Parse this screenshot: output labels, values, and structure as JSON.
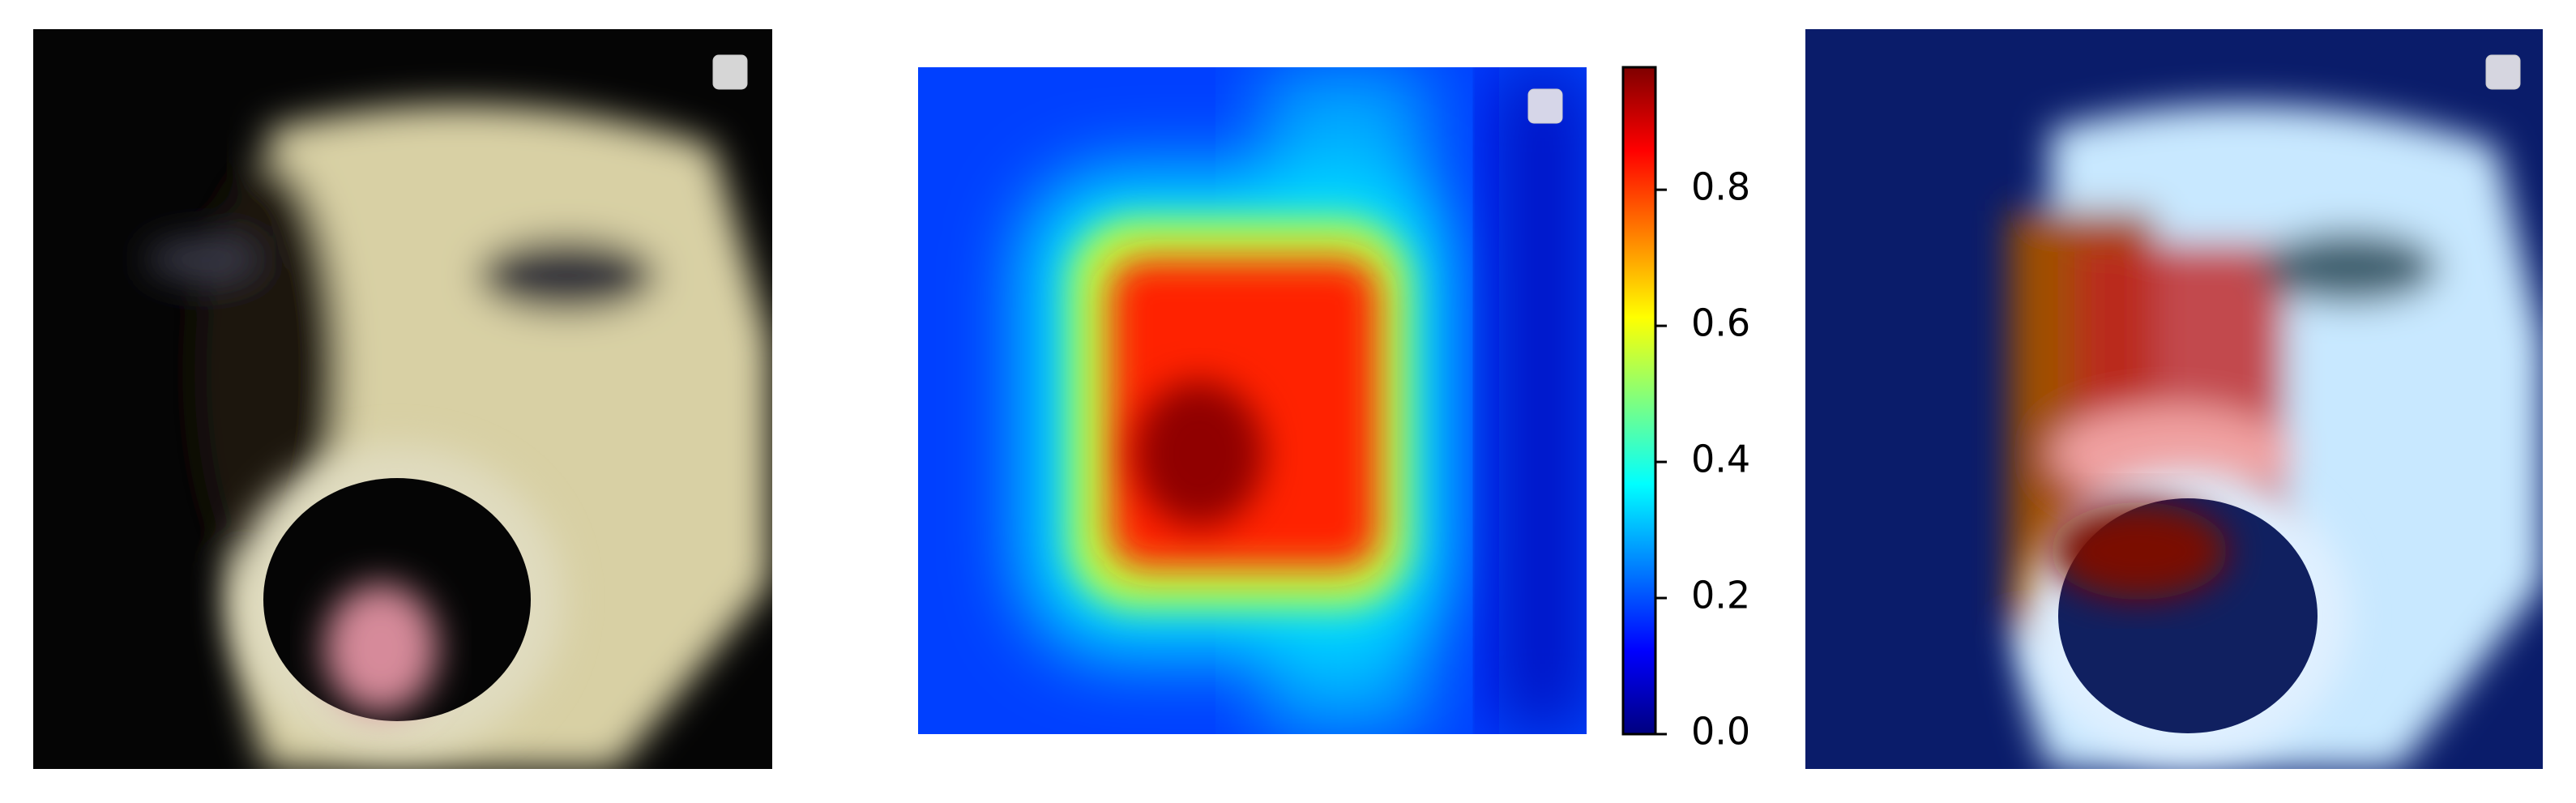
{
  "chart_data": {
    "type": "heatmap",
    "colormap": "jet",
    "ylim": [
      0,
      0.98
    ],
    "yticks": [
      {
        "value": 0,
        "label": "0.0"
      },
      0.2,
      0.4,
      0.6,
      0.8
    ]
  }
}
